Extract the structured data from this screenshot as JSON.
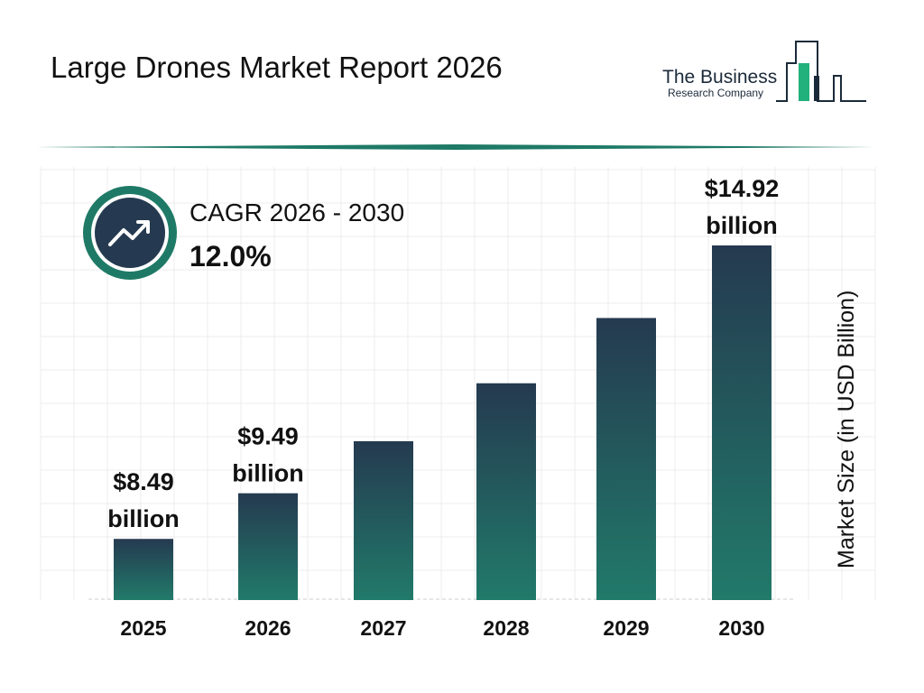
{
  "header": {
    "title": "Large Drones Market Report 2026"
  },
  "logo": {
    "line1": "The Business",
    "line2": "Research Company"
  },
  "cagr": {
    "label": "CAGR 2026 - 2030",
    "value": "12.0%",
    "icon": "trending-up-icon"
  },
  "colors": {
    "bar_top": "#253a50",
    "bar_bottom": "#217a6a",
    "accent": "#1e7a66"
  },
  "chart_data": {
    "type": "bar",
    "title": "Large Drones Market Report 2026",
    "categories": [
      "2025",
      "2026",
      "2027",
      "2028",
      "2029",
      "2030"
    ],
    "values": [
      8.49,
      9.49,
      10.63,
      11.9,
      13.33,
      14.92
    ],
    "data_labels": [
      {
        "index": 0,
        "line1": "$8.49",
        "line2": "billion"
      },
      {
        "index": 1,
        "line1": "$9.49",
        "line2": "billion"
      },
      {
        "index": 5,
        "line1": "$14.92",
        "line2": "billion"
      }
    ],
    "ylabel": "Market Size (in USD Billion)",
    "xlabel": "",
    "grid": true
  }
}
